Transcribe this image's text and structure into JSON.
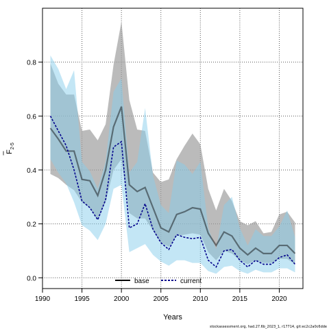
{
  "chart_data": {
    "type": "line",
    "title": "",
    "xlabel": "Years",
    "ylabel_main": "F",
    "ylabel_sub": "2-5",
    "xlim": [
      1990,
      2023
    ],
    "ylim": [
      -0.04,
      1.0
    ],
    "xticks": [
      1990,
      1995,
      2000,
      2005,
      2010,
      2015,
      2020
    ],
    "yticks": [
      0.0,
      0.2,
      0.4,
      0.6,
      0.8
    ],
    "ytick_labels": [
      "0.0",
      "0.2",
      "0.4",
      "0.6",
      "0.8"
    ],
    "grid": true,
    "legend_position": "bottom",
    "footnote": "stockassessment.org, had.27.6b_2023_1, r17714, git:ec2c2a0c6dde",
    "colors": {
      "base_band": "#9e9e9e",
      "current_band": "#87ceeb",
      "base_line": "#000000",
      "current_line": "#00008b"
    },
    "x": [
      1991,
      1992,
      1993,
      1994,
      1995,
      1996,
      1997,
      1998,
      1999,
      2000,
      2001,
      2002,
      2003,
      2004,
      2005,
      2006,
      2007,
      2008,
      2009,
      2010,
      2011,
      2012,
      2013,
      2014,
      2015,
      2016,
      2017,
      2018,
      2019,
      2020,
      2021,
      2022
    ],
    "series": [
      {
        "name": "base",
        "line_style": "solid",
        "values": [
          0.555,
          0.515,
          0.47,
          0.47,
          0.365,
          0.36,
          0.305,
          0.4,
          0.56,
          0.635,
          0.345,
          0.32,
          0.335,
          0.26,
          0.185,
          0.17,
          0.235,
          0.245,
          0.26,
          0.255,
          0.165,
          0.12,
          0.17,
          0.155,
          0.11,
          0.085,
          0.11,
          0.09,
          0.09,
          0.12,
          0.12,
          0.09
        ],
        "lower": [
          0.385,
          0.37,
          0.345,
          0.325,
          0.28,
          0.26,
          0.215,
          0.28,
          0.4,
          0.44,
          0.24,
          0.22,
          0.22,
          0.175,
          0.13,
          0.115,
          0.155,
          0.16,
          0.165,
          0.16,
          0.095,
          0.065,
          0.1,
          0.09,
          0.065,
          0.05,
          0.065,
          0.055,
          0.055,
          0.07,
          0.07,
          0.05
        ],
        "upper": [
          0.795,
          0.72,
          0.68,
          0.68,
          0.545,
          0.55,
          0.51,
          0.57,
          0.79,
          0.95,
          0.66,
          0.55,
          0.545,
          0.39,
          0.355,
          0.365,
          0.44,
          0.49,
          0.535,
          0.495,
          0.33,
          0.25,
          0.33,
          0.285,
          0.21,
          0.195,
          0.21,
          0.165,
          0.17,
          0.235,
          0.245,
          0.205
        ]
      },
      {
        "name": "current",
        "line_style": "dashed",
        "values": [
          0.6,
          0.545,
          0.49,
          0.4,
          0.285,
          0.26,
          0.215,
          0.29,
          0.485,
          0.505,
          0.185,
          0.2,
          0.275,
          0.18,
          0.13,
          0.105,
          0.16,
          0.15,
          0.145,
          0.15,
          0.065,
          0.04,
          0.1,
          0.105,
          0.065,
          0.04,
          0.065,
          0.05,
          0.05,
          0.075,
          0.085,
          0.05
        ],
        "lower": [
          0.44,
          0.39,
          0.35,
          0.28,
          0.195,
          0.175,
          0.14,
          0.2,
          0.33,
          0.345,
          0.095,
          0.11,
          0.125,
          0.085,
          0.06,
          0.045,
          0.065,
          0.065,
          0.055,
          0.055,
          0.025,
          0.015,
          0.04,
          0.045,
          0.025,
          0.015,
          0.03,
          0.02,
          0.02,
          0.035,
          0.035,
          0.02
        ],
        "upper": [
          0.825,
          0.775,
          0.7,
          0.77,
          0.43,
          0.395,
          0.33,
          0.43,
          0.69,
          0.74,
          0.39,
          0.43,
          0.63,
          0.38,
          0.27,
          0.24,
          0.435,
          0.42,
          0.385,
          0.43,
          0.185,
          0.105,
          0.27,
          0.3,
          0.185,
          0.12,
          0.18,
          0.155,
          0.155,
          0.19,
          0.25,
          0.15
        ]
      }
    ]
  }
}
